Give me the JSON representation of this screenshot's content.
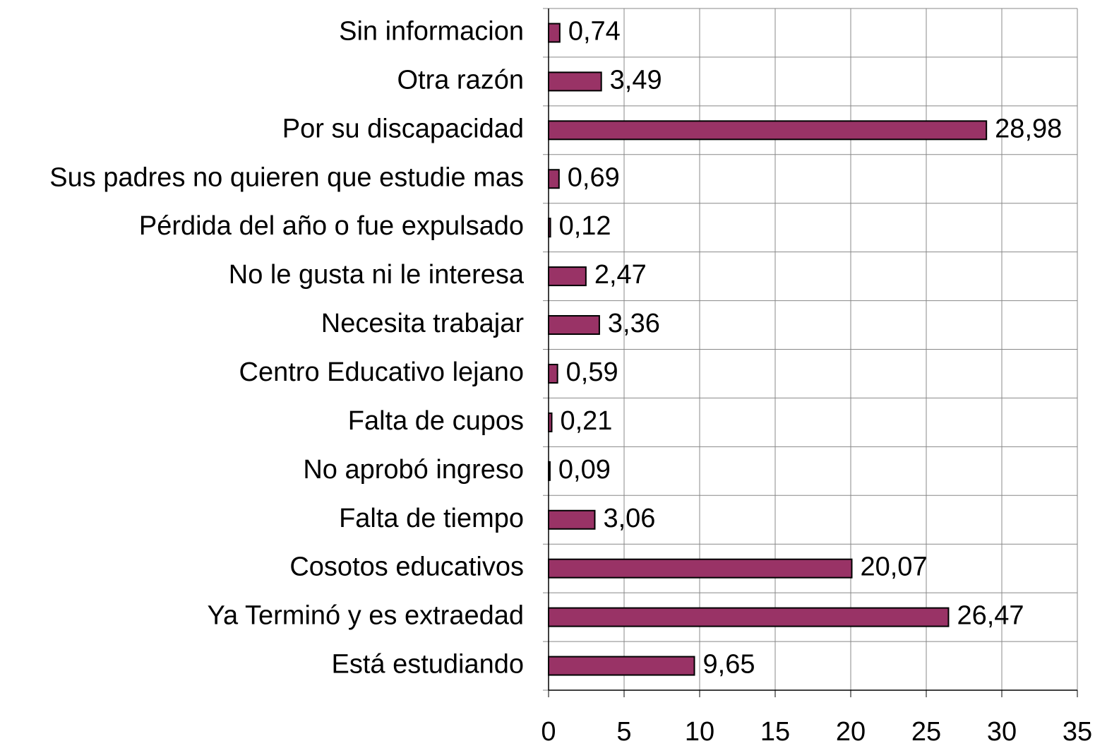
{
  "chart_data": {
    "type": "bar",
    "orientation": "horizontal",
    "categories": [
      "Sin informacion",
      "Otra razón",
      "Por su discapacidad",
      "Sus padres no quieren que estudie mas",
      "Pérdida del año o fue expulsado",
      "No le gusta ni le interesa",
      "Necesita trabajar",
      "Centro Educativo lejano",
      "Falta de cupos",
      "No aprobó  ingreso",
      "Falta de tiempo",
      "Cosotos educativos",
      "Ya Terminó y es extraedad",
      "Está estudiando"
    ],
    "values": [
      0.74,
      3.49,
      28.98,
      0.69,
      0.12,
      2.47,
      3.36,
      0.59,
      0.21,
      0.09,
      3.06,
      20.07,
      26.47,
      9.65
    ],
    "value_labels": [
      "0,74",
      "3,49",
      "28,98",
      "0,69",
      "0,12",
      "2,47",
      "3,36",
      "0,59",
      "0,21",
      "0,09",
      "3,06",
      "20,07",
      "26,47",
      "9,65"
    ],
    "color": "#993366",
    "xlim": [
      0,
      35
    ],
    "xticks": [
      0,
      5,
      10,
      15,
      20,
      25,
      30,
      35
    ],
    "grid": true
  }
}
